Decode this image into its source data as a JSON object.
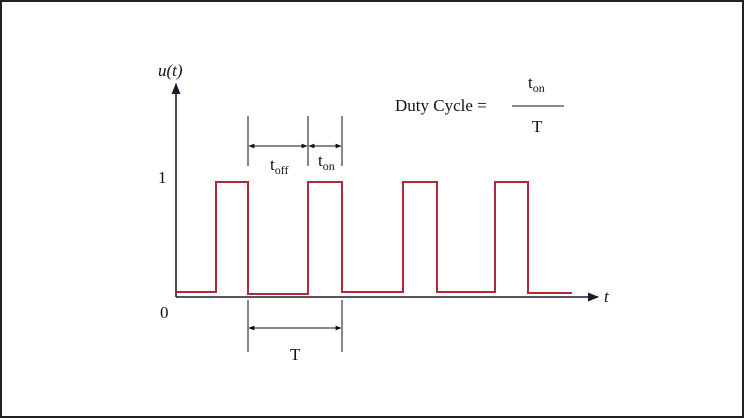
{
  "axes": {
    "y_label": "u(t)",
    "x_label": "t",
    "level_high": "1",
    "level_low": "0"
  },
  "annotations": {
    "t_off": {
      "base": "t",
      "sub": "off"
    },
    "t_on": {
      "base": "t",
      "sub": "on"
    },
    "period": "T"
  },
  "formula": {
    "lhs": "Duty Cycle =",
    "numerator": {
      "base": "t",
      "sub": "on"
    },
    "denominator": "T"
  }
}
